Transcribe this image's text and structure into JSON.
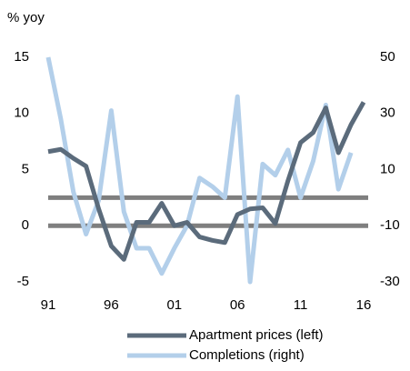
{
  "chart_data": {
    "type": "line",
    "y_label": "% yoy",
    "x": [
      1991,
      1992,
      1993,
      1994,
      1995,
      1996,
      1997,
      1998,
      1999,
      2000,
      2001,
      2002,
      2003,
      2004,
      2005,
      2006,
      2007,
      2008,
      2009,
      2010,
      2011,
      2012,
      2013,
      2014,
      2015,
      2016
    ],
    "xlim": [
      1991,
      2016
    ],
    "xticks": [
      {
        "value": 1991,
        "label": "91"
      },
      {
        "value": 1996,
        "label": "96"
      },
      {
        "value": 2001,
        "label": "01"
      },
      {
        "value": 2006,
        "label": "06"
      },
      {
        "value": 2011,
        "label": "11"
      },
      {
        "value": 2016,
        "label": "16"
      }
    ],
    "ylim": [
      -5,
      15
    ],
    "yticks": [
      -5,
      0,
      5,
      10,
      15
    ],
    "y2lim": [
      -30,
      50
    ],
    "y2ticks": [
      -30,
      -10,
      10,
      30,
      50
    ],
    "zero_lines": true,
    "legend": "bottom",
    "series": [
      {
        "name": "Apartment prices (left)",
        "color": "#5b6b7b",
        "axis": "y",
        "values": [
          6.6,
          6.8,
          6.0,
          5.3,
          1.5,
          -1.8,
          -3.0,
          0.3,
          0.3,
          2.0,
          0.0,
          0.3,
          -1.0,
          -1.3,
          -1.5,
          1.0,
          1.5,
          1.6,
          0.2,
          4.0,
          7.4,
          8.3,
          10.5,
          6.5,
          9.0,
          11.0
        ]
      },
      {
        "name": "Completions (right)",
        "color": "#b3cfea",
        "axis": "y2",
        "values": [
          50,
          28,
          2,
          -13,
          -1,
          31,
          -5,
          -18,
          -18,
          -27,
          -18,
          -10,
          7,
          4,
          0,
          36,
          -30,
          12,
          8,
          17,
          0,
          13,
          33,
          3,
          16,
          null
        ]
      }
    ]
  }
}
